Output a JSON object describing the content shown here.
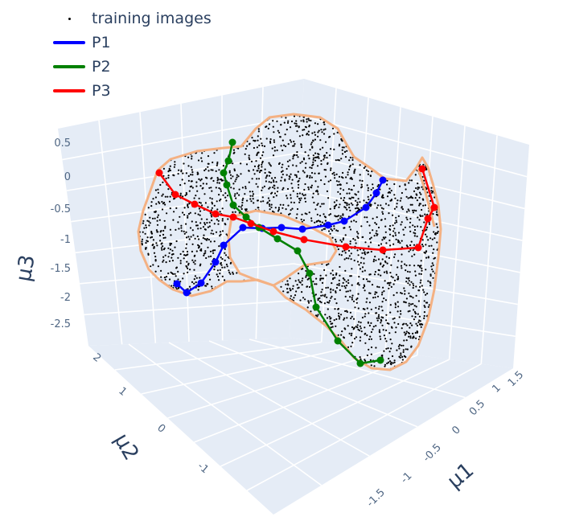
{
  "legend": {
    "training": "training images",
    "p1": "P1",
    "p2": "P2",
    "p3": "P3"
  },
  "colors": {
    "background_pane": "#e5ecf6",
    "grid": "#ffffff",
    "training": "#000000",
    "p1": "#0000ff",
    "p2": "#008000",
    "p3": "#ff0000",
    "boundary": "#f4b183"
  },
  "chart_data": {
    "type": "scatter",
    "projection": "3d",
    "axes": {
      "x": {
        "title": "μ1",
        "ticks": [
          "-1.5",
          "-1",
          "-0.5",
          "0",
          "0.5",
          "1",
          "1.5"
        ]
      },
      "y": {
        "title": "μ2",
        "ticks": [
          "-1",
          "0",
          "1",
          "2"
        ]
      },
      "z": {
        "title": "μ3",
        "ticks": [
          "-2.5",
          "-2",
          "-1.5",
          "-1",
          "-0.5",
          "0",
          "0.5"
        ]
      }
    },
    "series": [
      {
        "name": "training images",
        "mode": "markers",
        "note": "dense cloud of ~2000 points forming a curved sheet"
      },
      {
        "name": "P1",
        "mode": "lines+markers"
      },
      {
        "name": "P2",
        "mode": "lines+markers"
      },
      {
        "name": "P3",
        "mode": "lines+markers"
      }
    ]
  }
}
